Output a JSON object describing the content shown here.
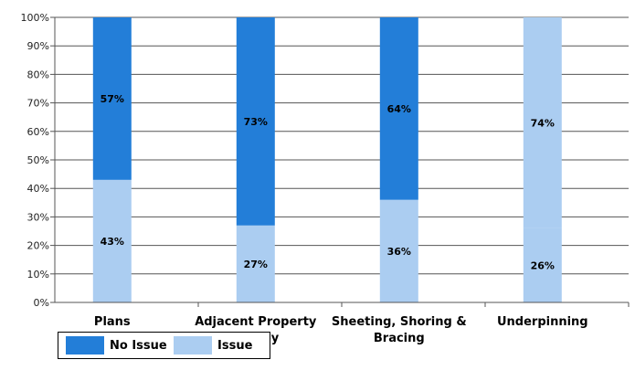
{
  "chart_data": {
    "type": "bar",
    "stacked": true,
    "categories": [
      [
        "Plans"
      ],
      [
        "Adjacent Property",
        "Survey"
      ],
      [
        "Sheeting, Shoring &",
        "Bracing"
      ],
      [
        "Underpinning"
      ]
    ],
    "series": [
      {
        "name": "Issue",
        "values": [
          43,
          27,
          36,
          26
        ],
        "labels": [
          "43%",
          "27%",
          "36%",
          "26%"
        ],
        "color": "#abcdf1"
      },
      {
        "name": "No Issue",
        "values": [
          57,
          73,
          64,
          74
        ],
        "labels": [
          "57%",
          "73%",
          "64%",
          "74%"
        ],
        "color": "#237ed8"
      }
    ],
    "segment_fills": [
      [
        "#abcdf1",
        "#237ed8"
      ],
      [
        "#abcdf1",
        "#237ed8"
      ],
      [
        "#abcdf1",
        "#237ed8"
      ],
      [
        "#abcdf1",
        "#abcdf1"
      ]
    ],
    "yticks": [
      "0%",
      "10%",
      "20%",
      "30%",
      "40%",
      "50%",
      "60%",
      "70%",
      "80%",
      "90%",
      "100%"
    ],
    "ylim": [
      0,
      100
    ],
    "grid": true,
    "legend_position": "bottom-left",
    "legend": [
      {
        "label": "No Issue",
        "color": "#237ed8"
      },
      {
        "label": "Issue",
        "color": "#abcdf1"
      }
    ]
  }
}
